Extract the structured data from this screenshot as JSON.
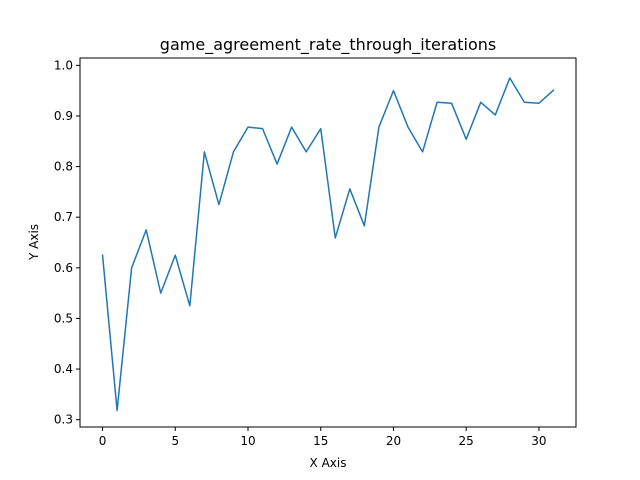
{
  "chart_data": {
    "type": "line",
    "title": "game_agreement_rate_through_iterations",
    "xlabel": "X Axis",
    "ylabel": "Y Axis",
    "xlim": [
      -1.55,
      32.55
    ],
    "ylim": [
      0.2855,
      1.0145
    ],
    "xticks": [
      0,
      5,
      10,
      15,
      20,
      25,
      30
    ],
    "yticks": [
      0.3,
      0.4,
      0.5,
      0.6,
      0.7,
      0.8,
      0.9,
      1.0
    ],
    "ytick_labels": [
      "0.3",
      "0.4",
      "0.5",
      "0.6",
      "0.7",
      "0.8",
      "0.9",
      "1.0"
    ],
    "grid": false,
    "series": [
      {
        "color": "#1f77b4",
        "x": [
          0,
          1,
          2,
          3,
          4,
          5,
          6,
          7,
          8,
          9,
          10,
          11,
          12,
          13,
          14,
          15,
          16,
          17,
          18,
          19,
          20,
          21,
          22,
          23,
          24,
          25,
          26,
          27,
          28,
          29,
          30,
          31
        ],
        "y": [
          0.625,
          0.318,
          0.6,
          0.675,
          0.55,
          0.625,
          0.525,
          0.829,
          0.725,
          0.829,
          0.878,
          0.875,
          0.805,
          0.878,
          0.829,
          0.875,
          0.659,
          0.756,
          0.683,
          0.878,
          0.95,
          0.878,
          0.829,
          0.927,
          0.925,
          0.854,
          0.927,
          0.902,
          0.975,
          0.927,
          0.925,
          0.951
        ]
      }
    ]
  }
}
